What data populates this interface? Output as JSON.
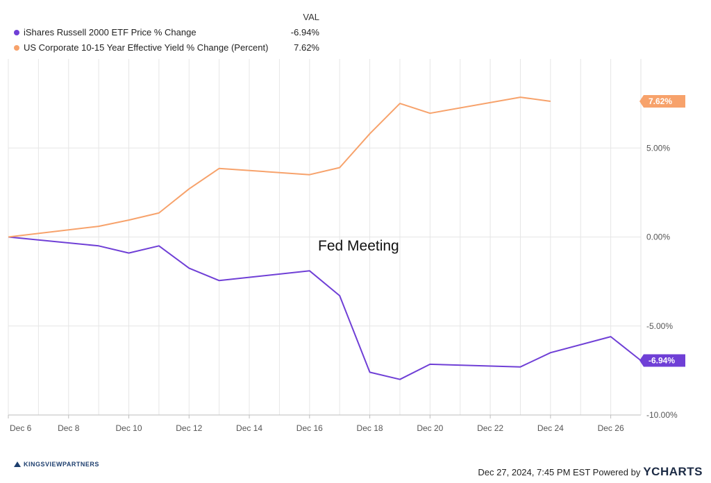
{
  "legend": {
    "header": "VAL",
    "items": [
      {
        "name": "iShares Russell 2000 ETF Price % Change",
        "value": "-6.94%",
        "color": "#6f3fd6"
      },
      {
        "name": "US Corporate 10-15 Year Effective Yield % Change (Percent)",
        "value": "7.62%",
        "color": "#f7a26b"
      }
    ]
  },
  "annotation": "Fed Meeting",
  "footer": {
    "left_logo": "KINGSVIEWPARTNERS",
    "timestamp": "Dec 27, 2024, 7:45 PM EST Powered by",
    "brand": "YCHARTS"
  },
  "chart_data": {
    "type": "line",
    "x_range": [
      "Dec 6",
      "Dec 27"
    ],
    "ylim": [
      -10,
      10
    ],
    "y_ticks": [
      "5.00%",
      "0.00%",
      "-5.00%",
      "-10.00%"
    ],
    "x_ticks": [
      "Dec 6",
      "Dec 8",
      "Dec 10",
      "Dec 12",
      "Dec 14",
      "Dec 16",
      "Dec 18",
      "Dec 20",
      "Dec 22",
      "Dec 24",
      "Dec 26"
    ],
    "grid": true,
    "series": [
      {
        "name": "iShares Russell 2000 ETF Price % Change",
        "color": "#6f3fd6",
        "end_label": "-6.94%",
        "points": [
          [
            "Dec 6",
            0.0
          ],
          [
            "Dec 9",
            -0.5
          ],
          [
            "Dec 10",
            -0.9
          ],
          [
            "Dec 11",
            -0.5
          ],
          [
            "Dec 12",
            -1.75
          ],
          [
            "Dec 13",
            -2.45
          ],
          [
            "Dec 16",
            -1.9
          ],
          [
            "Dec 17",
            -3.3
          ],
          [
            "Dec 18",
            -7.6
          ],
          [
            "Dec 19",
            -8.0
          ],
          [
            "Dec 20",
            -7.15
          ],
          [
            "Dec 23",
            -7.3
          ],
          [
            "Dec 24",
            -6.5
          ],
          [
            "Dec 26",
            -5.6
          ],
          [
            "Dec 27",
            -6.94
          ]
        ]
      },
      {
        "name": "US Corporate 10-15 Year Effective Yield % Change (Percent)",
        "color": "#f7a26b",
        "end_label": "7.62%",
        "points": [
          [
            "Dec 6",
            0.0
          ],
          [
            "Dec 9",
            0.6
          ],
          [
            "Dec 10",
            0.95
          ],
          [
            "Dec 11",
            1.35
          ],
          [
            "Dec 12",
            2.7
          ],
          [
            "Dec 13",
            3.85
          ],
          [
            "Dec 16",
            3.5
          ],
          [
            "Dec 17",
            3.9
          ],
          [
            "Dec 18",
            5.8
          ],
          [
            "Dec 19",
            7.5
          ],
          [
            "Dec 20",
            6.95
          ],
          [
            "Dec 23",
            7.85
          ],
          [
            "Dec 24",
            7.62
          ]
        ]
      }
    ]
  }
}
